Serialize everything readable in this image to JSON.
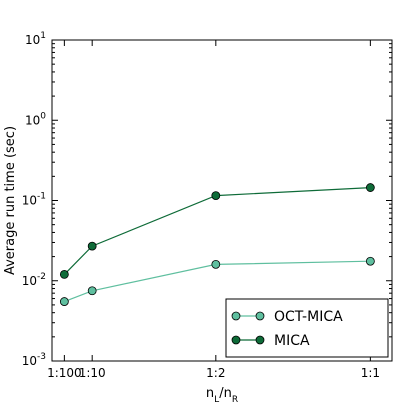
{
  "chart_data": {
    "type": "line",
    "title": "",
    "xlabel": "n_L/n_R",
    "ylabel": "Average run time (sec)",
    "yscale": "log",
    "ylim": [
      0.001,
      10
    ],
    "x_ticks": [
      "1:100",
      "1:10",
      "1:2",
      "1:1"
    ],
    "x_values": [
      0.01,
      0.1,
      0.5,
      1.0
    ],
    "xlim": [
      -0.03,
      1.07
    ],
    "y_ticks": [
      {
        "value": 10,
        "base": "10",
        "exp": "1"
      },
      {
        "value": 1,
        "base": "10",
        "exp": "0"
      },
      {
        "value": 0.1,
        "base": "10",
        "exp": "-1"
      },
      {
        "value": 0.01,
        "base": "10",
        "exp": "-2"
      },
      {
        "value": 0.001,
        "base": "10",
        "exp": "-3"
      }
    ],
    "grid": false,
    "legend_position": "bottom-right",
    "series": [
      {
        "name": "OCT-MICA",
        "color": "#5fbf9f",
        "values": [
          0.0055,
          0.0075,
          0.016,
          0.0175
        ]
      },
      {
        "name": "MICA",
        "color": "#0e6b38",
        "values": [
          0.012,
          0.027,
          0.115,
          0.145
        ]
      }
    ]
  }
}
